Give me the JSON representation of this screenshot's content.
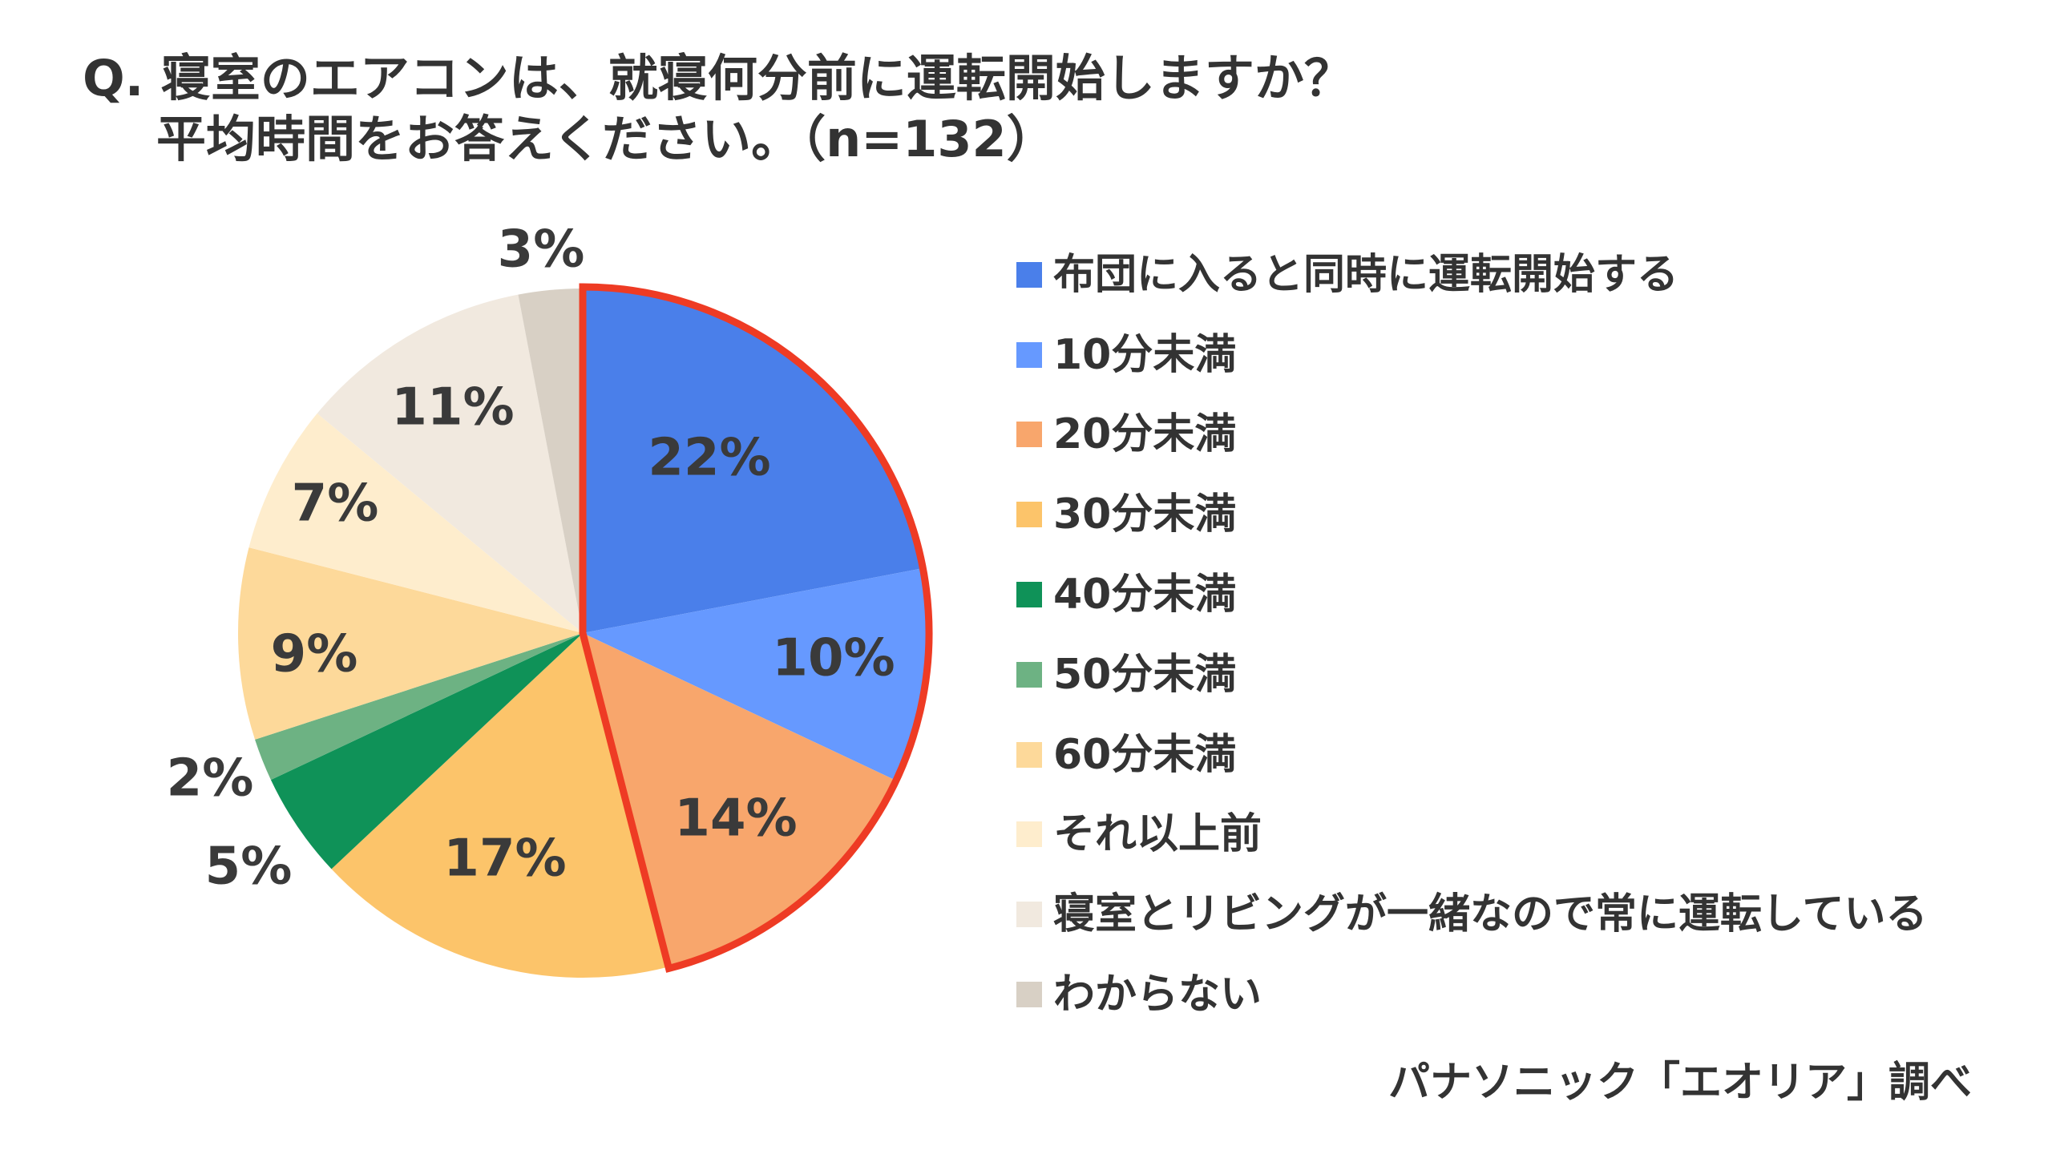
{
  "title": {
    "line1": "Q. 寝室のエアコンは、就寝何分前に運転開始しますか？",
    "line2": "平均時間をお答えください。（n=132）"
  },
  "source": "パナソニック「エオリア」調べ",
  "colors": {
    "highlight_outline": "#EE3B24",
    "label_text": "#3A3A3A"
  },
  "chart_data": {
    "type": "pie",
    "start": "12 o'clock, clockwise",
    "highlighted_slices": [
      "布団に入ると同時に運転開始する",
      "10分未満",
      "20分未満"
    ],
    "slices": [
      {
        "label": "布団に入ると同時に運転開始する",
        "value": 22,
        "display": "22%",
        "color": "#4A7FEA"
      },
      {
        "label": "10分未満",
        "value": 10,
        "display": "10%",
        "color": "#6699FF"
      },
      {
        "label": "20分未満",
        "value": 14,
        "display": "14%",
        "color": "#F8A66C"
      },
      {
        "label": "30分未満",
        "value": 17,
        "display": "17%",
        "color": "#FCC46A"
      },
      {
        "label": "40分未満",
        "value": 5,
        "display": "5%",
        "color": "#0F9258"
      },
      {
        "label": "50分未満",
        "value": 2,
        "display": "2%",
        "color": "#6DB283"
      },
      {
        "label": "60分未満",
        "value": 9,
        "display": "9%",
        "color": "#FDD99A"
      },
      {
        "label": "それ以上前",
        "value": 7,
        "display": "7%",
        "color": "#FEEDCD"
      },
      {
        "label": "寝室とリビングが一緒なので常に運転している",
        "value": 11,
        "display": "11%",
        "color": "#F1E9DF"
      },
      {
        "label": "わからない",
        "value": 3,
        "display": "3%",
        "color": "#D8D0C5"
      }
    ]
  }
}
